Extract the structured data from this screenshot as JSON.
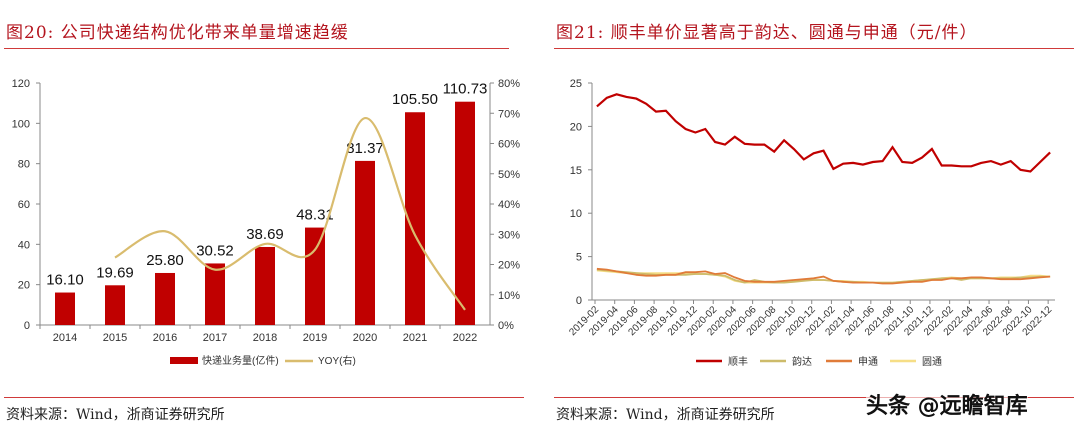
{
  "left": {
    "title": "图20:    公司快递结构优化带来单量增速趋缓",
    "source": "资料来源：Wind，浙商证券研究所"
  },
  "right": {
    "title": "图21:    顺丰单价显著高于韵达、圆通与申通（元/件）",
    "source": "资料来源：Wind，浙商证券研究所"
  },
  "watermark": "头条 @远瞻智库",
  "chart_data": [
    {
      "type": "bar",
      "categories": [
        "2014",
        "2015",
        "2016",
        "2017",
        "2018",
        "2019",
        "2020",
        "2021",
        "2022"
      ],
      "series": [
        {
          "name": "快递业务量(亿件)",
          "type": "bar",
          "axis": "left",
          "color": "#C00000",
          "values": [
            16.1,
            19.69,
            25.8,
            30.52,
            38.69,
            48.31,
            81.37,
            105.5,
            110.73
          ],
          "labels": [
            "16.10",
            "19.69",
            "25.80",
            "30.52",
            "38.69",
            "48.31",
            "81.37",
            "105.50",
            "110.73"
          ]
        },
        {
          "name": "YOY(右)",
          "type": "line",
          "axis": "right",
          "color": "#D9BC6E",
          "values": [
            null,
            22.3,
            31.0,
            18.3,
            26.8,
            24.9,
            68.4,
            29.7,
            5.0
          ]
        }
      ],
      "yleft": {
        "range": [
          0,
          120
        ],
        "ticks": [
          "0",
          "20",
          "40",
          "60",
          "80",
          "100",
          "120"
        ]
      },
      "yright": {
        "range": [
          0,
          80
        ],
        "ticks": [
          "0%",
          "10%",
          "20%",
          "30%",
          "40%",
          "50%",
          "60%",
          "70%",
          "80%"
        ]
      },
      "legend": "bottom"
    },
    {
      "type": "line",
      "x": [
        "2019-02",
        "2019-03",
        "2019-04",
        "2019-05",
        "2019-06",
        "2019-07",
        "2019-08",
        "2019-09",
        "2019-10",
        "2019-11",
        "2019-12",
        "2020-01",
        "2020-02",
        "2020-03",
        "2020-04",
        "2020-05",
        "2020-06",
        "2020-07",
        "2020-08",
        "2020-09",
        "2020-10",
        "2020-11",
        "2020-12",
        "2021-01",
        "2021-02",
        "2021-03",
        "2021-04",
        "2021-05",
        "2021-06",
        "2021-07",
        "2021-08",
        "2021-09",
        "2021-10",
        "2021-11",
        "2021-12",
        "2022-01",
        "2022-02",
        "2022-03",
        "2022-04",
        "2022-05",
        "2022-06",
        "2022-07",
        "2022-08",
        "2022-09",
        "2022-10",
        "2022-11",
        "2022-12"
      ],
      "series": [
        {
          "name": "顺丰",
          "color": "#C00000",
          "values": [
            22.3,
            23.3,
            23.7,
            23.4,
            23.2,
            22.6,
            21.7,
            21.8,
            20.6,
            19.7,
            19.3,
            19.7,
            18.2,
            17.9,
            18.8,
            18.0,
            17.9,
            17.9,
            17.1,
            18.4,
            17.4,
            16.2,
            16.9,
            17.2,
            15.1,
            15.7,
            15.8,
            15.6,
            15.9,
            16.0,
            17.6,
            15.9,
            15.8,
            16.4,
            17.4,
            15.5,
            15.5,
            15.4,
            15.4,
            15.8,
            16.0,
            15.6,
            16.0,
            15.0,
            14.8,
            15.9,
            17.0
          ]
        },
        {
          "name": "韵达",
          "color": "#CDBB6A",
          "values": [
            3.5,
            3.4,
            3.3,
            3.2,
            3.1,
            3.0,
            2.9,
            2.9,
            2.9,
            2.9,
            3.0,
            3.0,
            2.9,
            2.8,
            2.3,
            2.0,
            2.3,
            2.1,
            2.0,
            2.0,
            2.1,
            2.2,
            2.3,
            2.3,
            2.2,
            2.1,
            2.1,
            2.0,
            2.0,
            2.0,
            2.0,
            2.1,
            2.2,
            2.3,
            2.4,
            2.5,
            2.5,
            2.3,
            2.5,
            2.5,
            2.5,
            2.5,
            2.5,
            2.6,
            2.6,
            2.7,
            2.7
          ]
        },
        {
          "name": "申通",
          "color": "#E07B39",
          "values": [
            3.6,
            3.5,
            3.3,
            3.1,
            2.9,
            2.8,
            2.8,
            2.9,
            2.9,
            3.2,
            3.2,
            3.3,
            3.0,
            3.1,
            2.6,
            2.2,
            2.1,
            2.1,
            2.1,
            2.2,
            2.3,
            2.4,
            2.5,
            2.7,
            2.2,
            2.1,
            2.0,
            2.0,
            2.0,
            1.9,
            1.9,
            2.0,
            2.1,
            2.1,
            2.3,
            2.3,
            2.5,
            2.5,
            2.6,
            2.6,
            2.5,
            2.4,
            2.4,
            2.4,
            2.5,
            2.6,
            2.7
          ]
        },
        {
          "name": "圆通",
          "color": "#F6DE86",
          "values": [
            3.4,
            3.3,
            3.2,
            3.1,
            3.1,
            3.1,
            3.1,
            3.1,
            3.1,
            3.1,
            3.0,
            3.0,
            2.9,
            2.7,
            2.2,
            2.0,
            2.0,
            2.0,
            2.0,
            2.1,
            2.2,
            2.3,
            2.3,
            2.3,
            2.2,
            2.2,
            2.1,
            2.1,
            2.0,
            2.0,
            2.0,
            2.1,
            2.2,
            2.3,
            2.3,
            2.5,
            2.6,
            2.5,
            2.5,
            2.5,
            2.5,
            2.6,
            2.6,
            2.6,
            2.8,
            2.8,
            2.7
          ]
        }
      ],
      "yrange": [
        0,
        25
      ],
      "yticks": [
        "0",
        "5",
        "10",
        "15",
        "20",
        "25"
      ],
      "xtick_every": 2,
      "legend": "bottom"
    }
  ]
}
